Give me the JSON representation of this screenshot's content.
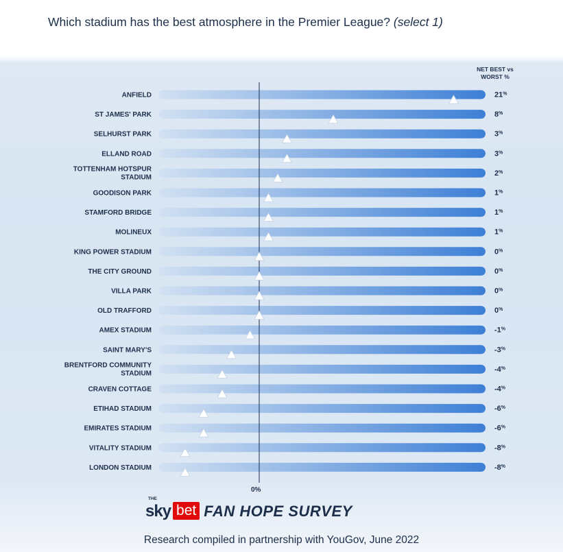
{
  "question": {
    "text": "Which stadium has the best atmosphere in the Premier League?",
    "suffix": "(select 1)"
  },
  "column_header": [
    "NET BEST vs",
    "WORST %"
  ],
  "chart_data": {
    "type": "bar",
    "title": "Which stadium has the best atmosphere in the Premier League? (select 1)",
    "value_header": "NET BEST vs WORST %",
    "zero_label": "0%",
    "categories": [
      "ANFIELD",
      "ST JAMES' PARK",
      "SELHURST PARK",
      "ELLAND ROAD",
      "TOTTENHAM HOTSPUR STADIUM",
      "GOODISON PARK",
      "STAMFORD BRIDGE",
      "MOLINEUX",
      "KING POWER STADIUM",
      "THE CITY GROUND",
      "VILLA PARK",
      "OLD TRAFFORD",
      "AMEX STADIUM",
      "SAINT MARY'S",
      "BRENTFORD COMMUNITY STADIUM",
      "CRAVEN COTTAGE",
      "ETIHAD STADIUM",
      "EMIRATES STADIUM",
      "VITALITY STADIUM",
      "LONDON STADIUM"
    ],
    "label_lines": [
      [
        "ANFIELD"
      ],
      [
        "ST JAMES' PARK"
      ],
      [
        "SELHURST PARK"
      ],
      [
        "ELLAND ROAD"
      ],
      [
        "TOTTENHAM HOTSPUR",
        "STADIUM"
      ],
      [
        "GOODISON PARK"
      ],
      [
        "STAMFORD BRIDGE"
      ],
      [
        "MOLINEUX"
      ],
      [
        "KING POWER STADIUM"
      ],
      [
        "THE CITY GROUND"
      ],
      [
        "VILLA PARK"
      ],
      [
        "OLD TRAFFORD"
      ],
      [
        "AMEX STADIUM"
      ],
      [
        "SAINT MARY'S"
      ],
      [
        "BRENTFORD COMMUNITY",
        "STADIUM"
      ],
      [
        "CRAVEN COTTAGE"
      ],
      [
        "ETIHAD STADIUM"
      ],
      [
        "EMIRATES STADIUM"
      ],
      [
        "VITALITY STADIUM"
      ],
      [
        "LONDON STADIUM"
      ]
    ],
    "values": [
      21,
      8,
      3,
      3,
      2,
      1,
      1,
      1,
      0,
      0,
      0,
      0,
      -1,
      -3,
      -4,
      -4,
      -6,
      -6,
      -8,
      -8
    ],
    "value_labels": [
      "21",
      "8",
      "3",
      "3",
      "2",
      "1",
      "1",
      "1",
      "0",
      "0",
      "0",
      "0",
      "-1",
      "-3",
      "-4",
      "-4",
      "-6",
      "-6",
      "-8",
      "-8"
    ],
    "value_unit": "%",
    "colors": {
      "bar_light": "#d2e1f2",
      "bar_dark": "#3d7fd6",
      "marker": "#ffffff",
      "text": "#1c2e4a"
    }
  },
  "branding": {
    "the": "THE",
    "sky": "sky",
    "bet": "bet",
    "survey": "FAN HOPE SURVEY"
  },
  "footer": "Research compiled in partnership with YouGov, June 2022"
}
